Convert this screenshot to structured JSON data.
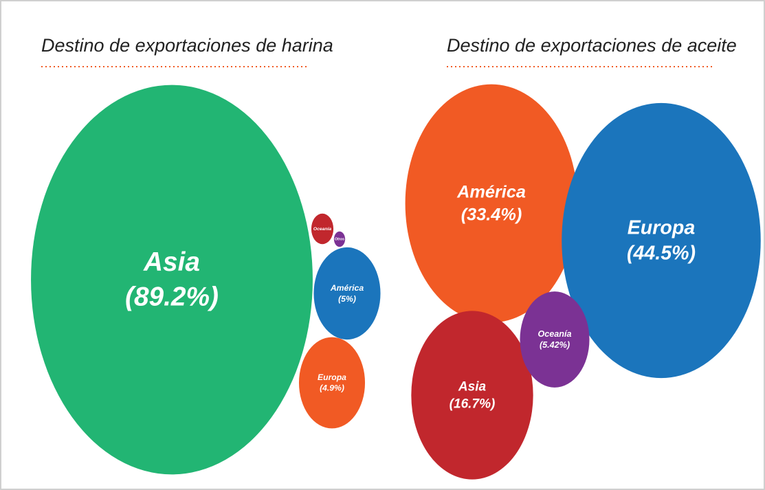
{
  "chart_data": [
    {
      "type": "bubble",
      "title": "Destino de exportaciones de harina",
      "categories": [
        "Asia",
        "Oceanía",
        "Otros",
        "América",
        "Europa"
      ],
      "values": [
        89.2,
        0.55,
        0.14,
        5,
        4.9
      ],
      "value_labels": [
        "(89.2%)",
        null,
        null,
        "(5%)",
        "(4.9%)"
      ],
      "colors": [
        "#22b573",
        "#c1272d",
        "#7b3294",
        "#1b75bc",
        "#f15a24"
      ]
    },
    {
      "type": "bubble",
      "title": "Destino de exportaciones de aceite",
      "categories": [
        "América",
        "Europa",
        "Asia",
        "Oceanía"
      ],
      "values": [
        33.4,
        44.5,
        16.7,
        5.42
      ],
      "value_labels": [
        "(33.4%)",
        "(44.5%)",
        "(16.7%)",
        "(5.42%)"
      ],
      "colors": [
        "#f15a24",
        "#1b75bc",
        "#c1272d",
        "#7b3294"
      ]
    }
  ]
}
